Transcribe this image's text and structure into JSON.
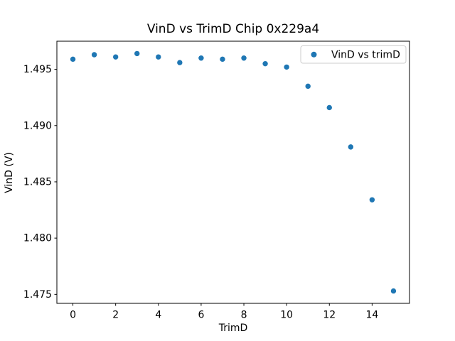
{
  "figure": {
    "background_color": "#ffffff",
    "spine_color": "#000000",
    "tick_color": "#000000"
  },
  "chart_data": {
    "type": "scatter",
    "title": "VinD vs TrimD Chip 0x229a4",
    "xlabel": "TrimD",
    "ylabel": "VinD (V)",
    "legend": {
      "label": "VinD vs trimD",
      "position": "upper right",
      "border_color": "#cccccc",
      "background_color": "#ffffff"
    },
    "marker_color": "#1f77b4",
    "marker_radius_px": 3.7,
    "grid": false,
    "x": [
      0,
      1,
      2,
      3,
      4,
      5,
      6,
      7,
      8,
      9,
      10,
      11,
      12,
      13,
      14,
      15
    ],
    "y": [
      1.4959,
      1.4963,
      1.4961,
      1.4964,
      1.4961,
      1.4956,
      1.496,
      1.4959,
      1.496,
      1.4955,
      1.4952,
      1.4935,
      1.4916,
      1.4881,
      1.4834,
      1.4753
    ],
    "xlim": [
      -0.75,
      15.75
    ],
    "ylim": [
      1.4742,
      1.4975
    ],
    "xticks": {
      "values": [
        0,
        2,
        4,
        6,
        8,
        10,
        12,
        14
      ],
      "labels": [
        "0",
        "2",
        "4",
        "6",
        "8",
        "10",
        "12",
        "14"
      ]
    },
    "yticks": {
      "values": [
        1.475,
        1.48,
        1.485,
        1.49,
        1.495
      ],
      "labels": [
        "1.475",
        "1.480",
        "1.485",
        "1.490",
        "1.495"
      ]
    }
  }
}
